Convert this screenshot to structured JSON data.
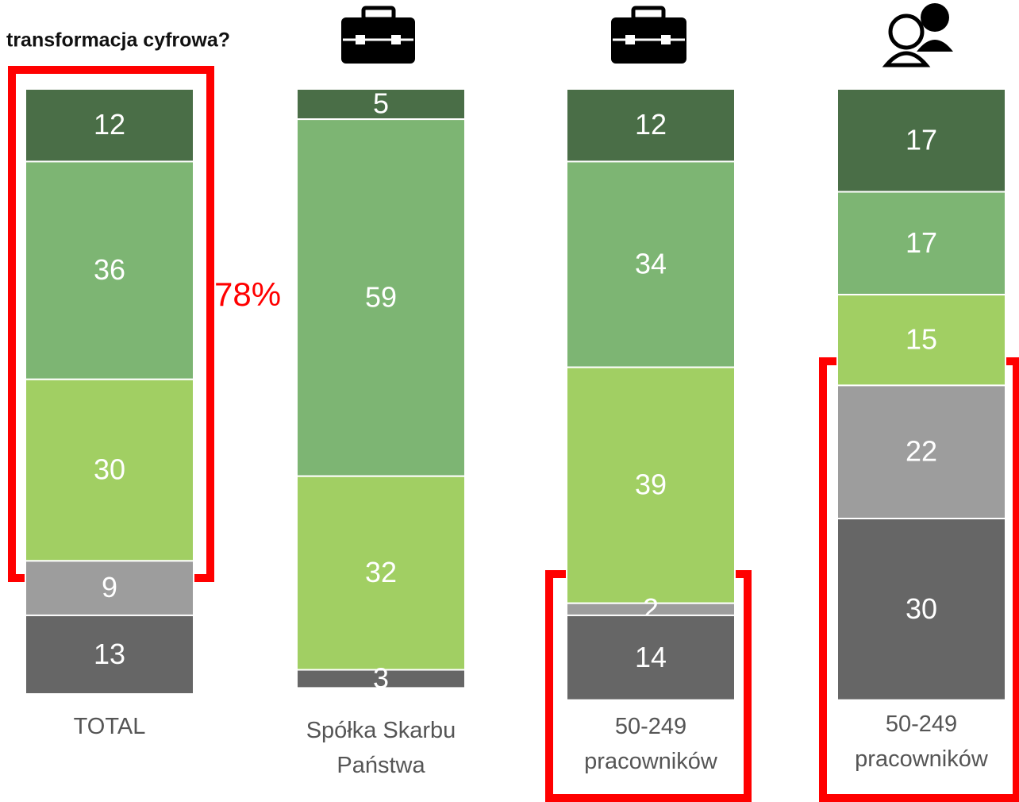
{
  "chart_data": {
    "type": "bar",
    "stacked": true,
    "title": "transformacja cyfrowa?",
    "annotation": "78%",
    "categories": [
      "TOTAL",
      "Spółka Skarbu Państwa",
      "50-249 pracowników",
      "50-249 pracowników"
    ],
    "series": [
      {
        "color": "#4a6e47",
        "values": [
          12,
          5,
          12,
          17
        ]
      },
      {
        "color": "#7db573",
        "values": [
          36,
          59,
          34,
          17
        ]
      },
      {
        "color": "#a1cf63",
        "values": [
          30,
          32,
          39,
          15
        ]
      },
      {
        "color": "#9d9d9d",
        "values": [
          9,
          null,
          2,
          22
        ]
      },
      {
        "color": "#666666",
        "values": [
          13,
          3,
          14,
          30
        ]
      }
    ]
  }
}
